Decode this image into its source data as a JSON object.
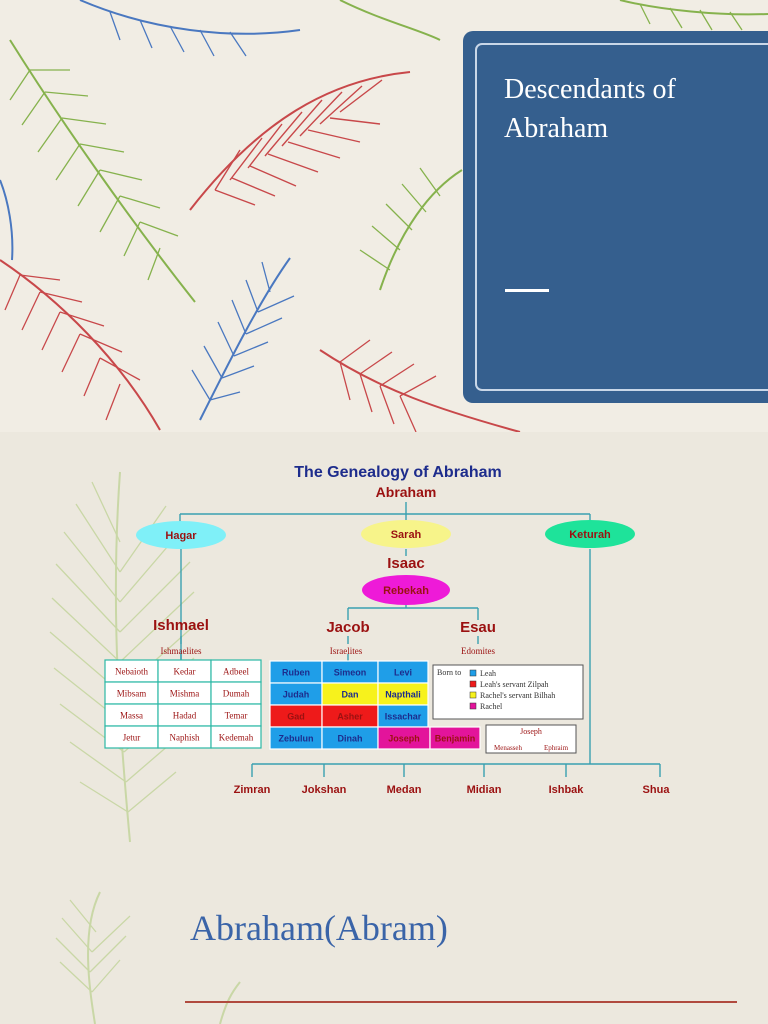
{
  "slide1": {
    "title": "Descendants of Abraham"
  },
  "chart": {
    "heading": "The Genealogy of Abraham",
    "root": "Abraham",
    "wives": [
      "Hagar",
      "Sarah",
      "Keturah"
    ],
    "isaac": "Isaac",
    "rebekah": "Rebekah",
    "ishmael": "Ishmael",
    "ishmaelites": "Ishmaelites",
    "jacob": "Jacob",
    "israelites": "Israelites",
    "esau": "Esau",
    "edomites": "Edomites",
    "ishmael_sons": [
      [
        "Nebaioth",
        "Kedar",
        "Adbeel"
      ],
      [
        "Mibsam",
        "Mishma",
        "Dumah"
      ],
      [
        "Massa",
        "Hadad",
        "Temar"
      ],
      [
        "Jetur",
        "Naphish",
        "Kedemah"
      ]
    ],
    "jacob_sons": [
      [
        {
          "name": "Ruben",
          "color": "#1f9ee8"
        },
        {
          "name": "Simeon",
          "color": "#1f9ee8"
        },
        {
          "name": "Levi",
          "color": "#1f9ee8"
        }
      ],
      [
        {
          "name": "Judah",
          "color": "#1f9ee8"
        },
        {
          "name": "Dan",
          "color": "#f7f21c"
        },
        {
          "name": "Napthali",
          "color": "#f7f21c"
        }
      ],
      [
        {
          "name": "Gad",
          "color": "#ee1a1a"
        },
        {
          "name": "Asher",
          "color": "#ee1a1a"
        },
        {
          "name": "Issachar",
          "color": "#1f9ee8"
        }
      ],
      [
        {
          "name": "Zebulun",
          "color": "#1f9ee8"
        },
        {
          "name": "Dinah",
          "color": "#1f9ee8"
        },
        {
          "name": "Joseph",
          "color": "#e3149b"
        },
        {
          "name": "Benjamin",
          "color": "#e3149b"
        }
      ]
    ],
    "legend_title": "Born to",
    "legend": [
      {
        "label": "Leah",
        "color": "#1f9ee8"
      },
      {
        "label": "Leah's servant Zilpah",
        "color": "#ee1a1a"
      },
      {
        "label": "Rachel's servant Bilhah",
        "color": "#f7f21c"
      },
      {
        "label": "Rachel",
        "color": "#e3149b"
      }
    ],
    "joseph_box": {
      "title": "Joseph",
      "sons": [
        "Menasseh",
        "Ephraim"
      ]
    },
    "keturah_sons": [
      "Zimran",
      "Jokshan",
      "Medan",
      "Midian",
      "Ishbak",
      "Shua"
    ]
  },
  "slide2": {
    "caption": "Abraham(Abram)"
  },
  "colors": {
    "title_box": "#355f8e",
    "caption": "#3a64a8",
    "dark_red": "#9b1111",
    "hagar": "#7ff0f8",
    "sarah": "#f7f48a",
    "keturah": "#1ee39a",
    "rebekah": "#ee1ad8"
  }
}
